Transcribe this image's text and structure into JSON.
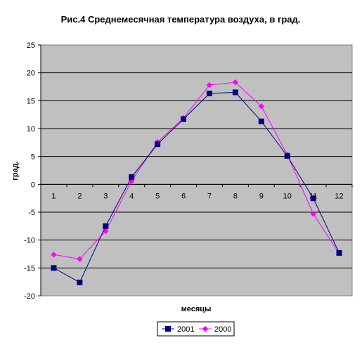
{
  "chart_data": {
    "type": "line",
    "title": "Рис.4  Среднемесячная температура воздуха, в град.",
    "xlabel": "месяцы",
    "ylabel": "град.",
    "categories": [
      "1",
      "2",
      "3",
      "4",
      "5",
      "6",
      "7",
      "8",
      "9",
      "10",
      "11",
      "12"
    ],
    "ylim": [
      -20,
      25
    ],
    "yticks": [
      "25",
      "20",
      "15",
      "10",
      "5",
      "0",
      "-5",
      "-10",
      "-15",
      "-20"
    ],
    "grid": true,
    "plot_background": "#c0c0c0",
    "legend_position": "bottom",
    "series": [
      {
        "name": "2001",
        "color": "#000080",
        "marker": "square",
        "values": [
          -15,
          -17.6,
          -7.5,
          1.3,
          7.2,
          11.7,
          16.3,
          16.5,
          11.3,
          5.1,
          -2.5,
          -12.3
        ]
      },
      {
        "name": "2000",
        "color": "#ff00ff",
        "marker": "diamond",
        "values": [
          -12.6,
          -13.4,
          -8.4,
          0.6,
          7.6,
          11.9,
          17.8,
          18.3,
          14,
          5.3,
          -5.3,
          -12.4
        ]
      }
    ]
  }
}
